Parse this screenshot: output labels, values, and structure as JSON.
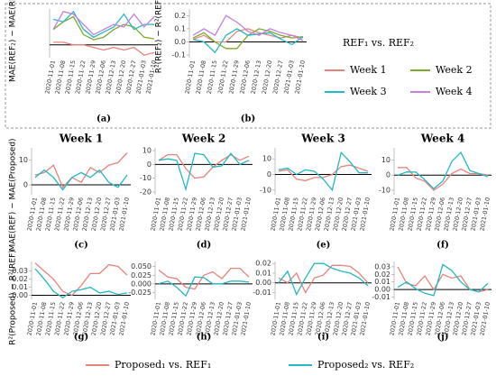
{
  "chart_data": [
    {
      "type": "line",
      "label": "(a)",
      "ylabel": "MAE(REF₂) − MAE(REF₁)",
      "x": [
        "2020-11-01",
        "2020-11-08",
        "2020-11-15",
        "2020-11-22",
        "2020-11-29",
        "2020-12-06",
        "2020-12-13",
        "2020-12-20",
        "2020-12-27",
        "2021-01-03",
        "2021-01-10"
      ],
      "ylim": [
        -25,
        70
      ],
      "series": [
        {
          "name": "Week 1",
          "color": "#e8837c",
          "values": [
            5,
            5,
            0,
            0,
            -5,
            -10,
            -5,
            -10,
            -5,
            -20,
            -15
          ]
        },
        {
          "name": "Week 2",
          "color": "#7aab2a",
          "values": [
            30,
            45,
            55,
            20,
            10,
            15,
            30,
            40,
            35,
            15,
            12
          ]
        },
        {
          "name": "Week 3",
          "color": "#22b8c4",
          "values": [
            50,
            45,
            65,
            30,
            15,
            25,
            35,
            60,
            30,
            40,
            40
          ]
        },
        {
          "name": "Week 4",
          "color": "#c57fe0",
          "values": [
            30,
            65,
            60,
            40,
            20,
            30,
            40,
            35,
            60,
            35,
            55
          ]
        }
      ]
    },
    {
      "type": "line",
      "label": "(b)",
      "ylabel": "R²(REF₂) − R²(REF₁)",
      "legend_title": "REF₁ vs. REF₂",
      "x": [
        "2020-11-01",
        "2020-11-08",
        "2020-11-15",
        "2020-11-22",
        "2020-11-29",
        "2020-12-06",
        "2020-12-13",
        "2020-12-20",
        "2020-12-27",
        "2021-01-03",
        "2021-01-10"
      ],
      "ylim": [
        -0.12,
        0.25
      ],
      "yticks": [
        0.2,
        0.1,
        {
          "value": 0,
          "label": "0.0"
        },
        -0.1
      ],
      "series": [
        {
          "name": "Week 1",
          "color": "#e8837c",
          "values": [
            0.02,
            0.05,
            0.0,
            0.0,
            0.08,
            0.1,
            0.07,
            0.05,
            0.03,
            0.05,
            0.03
          ]
        },
        {
          "name": "Week 2",
          "color": "#7aab2a",
          "values": [
            0.03,
            0.07,
            0.0,
            -0.05,
            -0.05,
            0.05,
            0.1,
            0.08,
            0.05,
            0.03,
            0.04
          ]
        },
        {
          "name": "Week 3",
          "color": "#22b8c4",
          "values": [
            0.02,
            0.0,
            -0.08,
            0.05,
            0.1,
            0.05,
            0.06,
            0.07,
            0.02,
            -0.02,
            0.04
          ]
        },
        {
          "name": "Week 4",
          "color": "#c57fe0",
          "values": [
            0.05,
            0.1,
            0.05,
            0.2,
            0.15,
            0.08,
            0.05,
            0.1,
            0.07,
            0.05,
            0.01
          ]
        }
      ]
    },
    {
      "type": "line",
      "label": "(c)",
      "title": "Week 1",
      "ylabel": "MAE(REF) − MAE(Proposed)",
      "x": [
        "2020-11-01",
        "2020-11-08",
        "2020-11-15",
        "2020-11-22",
        "2020-11-29",
        "2020-12-06",
        "2020-12-13",
        "2020-12-20",
        "2020-12-27",
        "2021-01-03",
        "2021-01-10"
      ],
      "ylim": [
        -4,
        15
      ],
      "yticks": [
        10,
        0
      ],
      "series": [
        {
          "name": "Proposed₁ vs. REF₁",
          "color": "#e8837c",
          "values": [
            4,
            5,
            8,
            -1,
            3,
            1,
            7,
            5,
            8,
            9,
            13
          ]
        },
        {
          "name": "Proposed₂ vs. REF₂",
          "color": "#22b8c4",
          "values": [
            3,
            6,
            3,
            -2,
            3,
            5,
            3,
            6,
            1,
            -1,
            4
          ]
        }
      ]
    },
    {
      "type": "line",
      "label": "(d)",
      "title": "Week 2",
      "x": [
        "2020-11-01",
        "2020-11-08",
        "2020-11-15",
        "2020-11-22",
        "2020-11-29",
        "2020-12-06",
        "2020-12-13",
        "2020-12-20",
        "2020-12-27",
        "2021-01-03",
        "2021-01-10"
      ],
      "ylim": [
        -22,
        12
      ],
      "yticks": [
        10,
        0,
        -10,
        -20
      ],
      "series": [
        {
          "name": "Proposed₁ vs. REF₁",
          "color": "#e8837c",
          "values": [
            3,
            7,
            7,
            -3,
            -10,
            -9,
            -2,
            3,
            7,
            3,
            6
          ]
        },
        {
          "name": "Proposed₂ vs. REF₂",
          "color": "#22b8c4",
          "values": [
            3,
            4,
            3,
            -18,
            8,
            7,
            -2,
            -1,
            8,
            0,
            3
          ]
        }
      ]
    },
    {
      "type": "line",
      "label": "(e)",
      "title": "Week 3",
      "x": [
        "2020-11-01",
        "2020-11-08",
        "2020-11-15",
        "2020-11-22",
        "2020-11-29",
        "2020-12-06",
        "2020-12-13",
        "2020-12-20",
        "2020-12-27",
        "2021-01-03",
        "2021-01-10"
      ],
      "ylim": [
        -13,
        17
      ],
      "yticks": [
        10,
        0,
        -10
      ],
      "series": [
        {
          "name": "Proposed₁ vs. REF₁",
          "color": "#e8837c",
          "values": [
            2,
            3,
            -3,
            -4,
            -2,
            -2,
            0,
            5,
            6,
            4,
            2
          ]
        },
        {
          "name": "Proposed₂ vs. REF₂",
          "color": "#22b8c4",
          "values": [
            3,
            4,
            0,
            3,
            2,
            -3,
            -10,
            14,
            8,
            1,
            1
          ]
        }
      ]
    },
    {
      "type": "line",
      "label": "(f)",
      "title": "Week 4",
      "x": [
        "2020-11-01",
        "2020-11-08",
        "2020-11-15",
        "2020-11-22",
        "2020-11-29",
        "2020-12-06",
        "2020-12-13",
        "2020-12-20",
        "2020-12-27",
        "2021-01-03",
        "2021-01-10"
      ],
      "ylim": [
        -13,
        18
      ],
      "yticks": [
        10,
        0,
        -10
      ],
      "series": [
        {
          "name": "Proposed₁ vs. REF₁",
          "color": "#e8837c",
          "values": [
            5,
            5,
            -2,
            -4,
            -10,
            -6,
            1,
            4,
            1,
            1,
            0
          ]
        },
        {
          "name": "Proposed₂ vs. REF₂",
          "color": "#22b8c4",
          "values": [
            0,
            2,
            2,
            -3,
            -9,
            -4,
            9,
            15,
            3,
            1,
            -1
          ]
        }
      ]
    },
    {
      "type": "line",
      "label": "(g)",
      "ylabel": "R²(Proposed) − R²(REF)",
      "x": [
        "2020-11-01",
        "2020-11-08",
        "2020-11-15",
        "2020-11-22",
        "2020-11-29",
        "2020-12-06",
        "2020-12-13",
        "2020-12-20",
        "2020-12-27",
        "2021-01-03",
        "2021-01-10"
      ],
      "ylim": [
        -0.005,
        0.042
      ],
      "yticks": [
        0.03,
        0.02,
        0.01,
        {
          "value": 0,
          "label": "0.00"
        }
      ],
      "series": [
        {
          "name": "Proposed₁ vs. REF₁",
          "color": "#e8837c",
          "values": [
            0.04,
            0.03,
            0.02,
            0.005,
            0.0,
            0.012,
            0.027,
            0.027,
            0.038,
            0.036,
            0.025
          ]
        },
        {
          "name": "Proposed₂ vs. REF₂",
          "color": "#22b8c4",
          "values": [
            0.033,
            0.02,
            0.005,
            -0.003,
            0.005,
            0.007,
            0.01,
            0.003,
            0.005,
            0.001,
            0.003
          ]
        }
      ]
    },
    {
      "type": "line",
      "label": "(h)",
      "x": [
        "2020-11-01",
        "2020-11-08",
        "2020-11-15",
        "2020-11-22",
        "2020-11-29",
        "2020-12-06",
        "2020-12-13",
        "2020-12-20",
        "2020-12-27",
        "2021-01-03",
        "2021-01-10"
      ],
      "ylim": [
        -0.045,
        0.065
      ],
      "yticks": [
        {
          "value": 0.05,
          "label": "0.050"
        },
        0.025,
        {
          "value": 0,
          "label": "0.000"
        },
        -0.025
      ],
      "series": [
        {
          "name": "Proposed₁ vs. REF₁",
          "color": "#e8837c",
          "values": [
            0.04,
            0.02,
            0.015,
            -0.01,
            -0.015,
            0.025,
            0.035,
            0.015,
            0.045,
            0.045,
            0.02
          ]
        },
        {
          "name": "Proposed₂ vs. REF₂",
          "color": "#22b8c4",
          "values": [
            0.0,
            0.008,
            -0.01,
            -0.035,
            0.02,
            0.018,
            0.0,
            0.0,
            0.008,
            0.008,
            0.005
          ]
        }
      ]
    },
    {
      "type": "line",
      "label": "(i)",
      "x": [
        "2020-11-01",
        "2020-11-08",
        "2020-11-15",
        "2020-11-22",
        "2020-11-29",
        "2020-12-06",
        "2020-12-13",
        "2020-12-20",
        "2020-12-27",
        "2021-01-03",
        "2021-01-10"
      ],
      "ylim": [
        -0.017,
        0.022
      ],
      "yticks": [
        0.02,
        0.01,
        {
          "value": 0,
          "label": "0.00"
        },
        -0.01
      ],
      "series": [
        {
          "name": "Proposed₁ vs. REF₁",
          "color": "#e8837c",
          "values": [
            0.005,
            0.0,
            0.01,
            -0.01,
            0.005,
            0.008,
            0.018,
            0.018,
            0.017,
            0.01,
            0.0
          ]
        },
        {
          "name": "Proposed₂ vs. REF₂",
          "color": "#22b8c4",
          "values": [
            0.0,
            0.012,
            -0.012,
            0.005,
            0.02,
            0.02,
            0.015,
            0.012,
            0.01,
            0.005,
            -0.003
          ]
        }
      ]
    },
    {
      "type": "line",
      "label": "(j)",
      "x": [
        "2020-11-01",
        "2020-11-08",
        "2020-11-15",
        "2020-11-22",
        "2020-11-29",
        "2020-12-06",
        "2020-12-13",
        "2020-12-20",
        "2020-12-27",
        "2021-01-03",
        "2021-01-10"
      ],
      "ylim": [
        -0.013,
        0.037
      ],
      "yticks": [
        0.03,
        0.02,
        0.01,
        {
          "value": 0,
          "label": "0.00"
        },
        -0.01
      ],
      "series": [
        {
          "name": "Proposed₁ vs. REF₁",
          "color": "#e8837c",
          "values": [
            0.03,
            0.008,
            0.005,
            0.018,
            0.0,
            0.02,
            0.015,
            0.018,
            0.0,
            -0.003,
            0.0
          ]
        },
        {
          "name": "Proposed₂ vs. REF₂",
          "color": "#22b8c4",
          "values": [
            0.003,
            0.01,
            0.001,
            -0.005,
            -0.008,
            0.033,
            0.025,
            0.01,
            0.0,
            -0.003,
            0.008
          ]
        }
      ]
    }
  ]
}
